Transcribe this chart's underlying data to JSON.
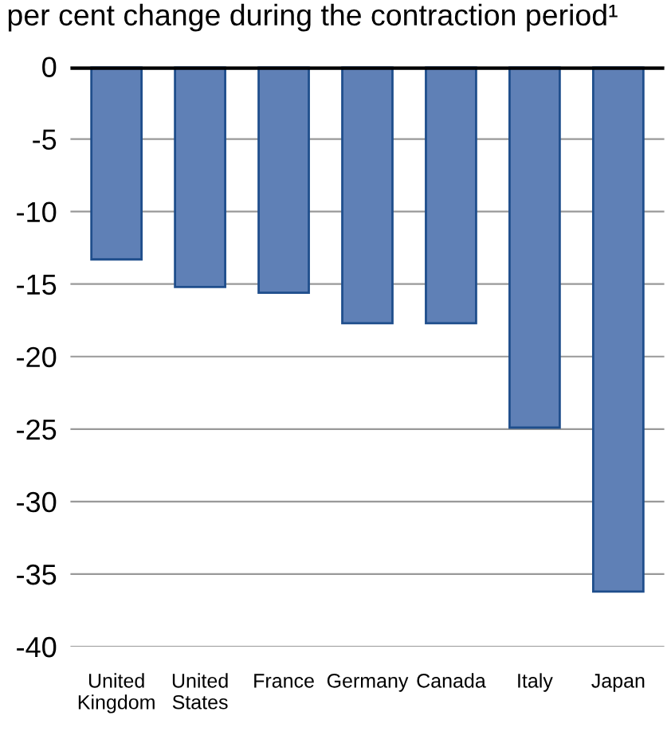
{
  "chart_data": {
    "type": "bar",
    "title": "per cent change during the contraction period¹",
    "categories": [
      "United\nKingdom",
      "United\nStates",
      "France",
      "Germany",
      "Canada",
      "Italy",
      "Japan"
    ],
    "values": [
      -13.3,
      -15.2,
      -15.6,
      -17.7,
      -17.7,
      -24.9,
      -36.2
    ],
    "color": "#5f80b6",
    "ylim": [
      -40,
      0
    ],
    "yticks": [
      0,
      -5,
      -10,
      -15,
      -20,
      -25,
      -30,
      -35,
      -40
    ],
    "grid": "y"
  }
}
